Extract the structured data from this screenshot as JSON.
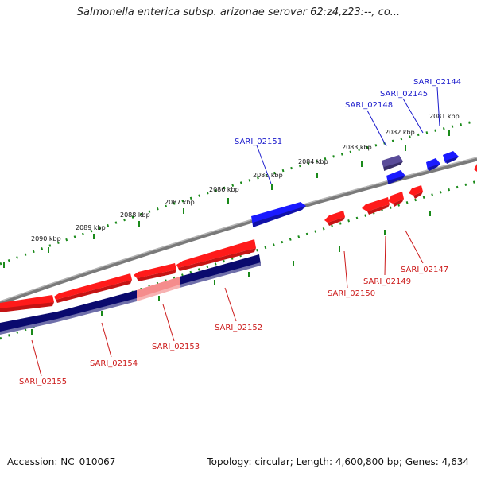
{
  "title": "Salmonella enterica subsp. arizonae serovar 62:z4,z23:--, co...",
  "footer": {
    "accession": "Accession: NC_010067",
    "summary": "Topology: circular; Length: 4,600,800 bp; Genes: 4,634"
  },
  "colors": {
    "forward": "#1a1aff",
    "reverse": "#ff1a1a",
    "highlight_forward": "#5a4c99",
    "highlight_reverse": "#f58c8c",
    "reverse_track": "#0a0a6e",
    "backbone": "#7a7a7a",
    "ruler": "#1a8a1a",
    "forward_label": "#1a1acc",
    "reverse_label": "#cc1a1a"
  },
  "ruler_labels": [
    "2081 kbp",
    "2082 kbp",
    "2083 kbp",
    "2084 kbp",
    "2085 kbp",
    "2086 kbp",
    "2087 kbp",
    "2088 kbp",
    "2089 kbp",
    "2090 kbp"
  ],
  "forward_genes": [
    "SARI_02144",
    "SARI_02145",
    "SARI_02148",
    "SARI_02151"
  ],
  "reverse_genes": [
    "SARI_02147",
    "SARI_02149",
    "SARI_02150",
    "SARI_02152",
    "SARI_02153",
    "SARI_02154",
    "SARI_02155"
  ]
}
